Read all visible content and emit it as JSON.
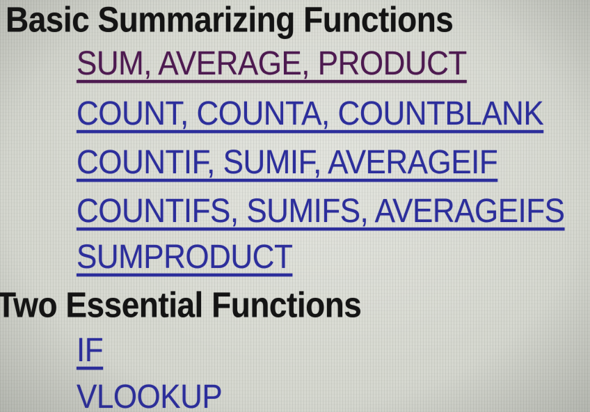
{
  "page": {
    "description": "Photographed screen of lecture notes listing Excel functions as hyperlinks",
    "colors": {
      "background": "#d8dad2",
      "heading": "#141414",
      "link_blue": "#2c2e9b",
      "visited_link_purple": "#4d1a50"
    }
  },
  "sections": [
    {
      "heading": "Basic Summarizing Functions",
      "links": [
        {
          "text": "SUM, AVERAGE, PRODUCT",
          "visited": true
        },
        {
          "text": "COUNT, COUNTA, COUNTBLANK",
          "visited": false
        },
        {
          "text": "COUNTIF, SUMIF, AVERAGEIF",
          "visited": false
        },
        {
          "text": "COUNTIFS, SUMIFS, AVERAGEIFS",
          "visited": false
        },
        {
          "text": "SUMPRODUCT",
          "visited": false
        }
      ]
    },
    {
      "heading": "Two Essential Functions",
      "links": [
        {
          "text": "IF",
          "visited": false
        },
        {
          "text": "VLOOKUP",
          "visited": false
        }
      ]
    }
  ]
}
